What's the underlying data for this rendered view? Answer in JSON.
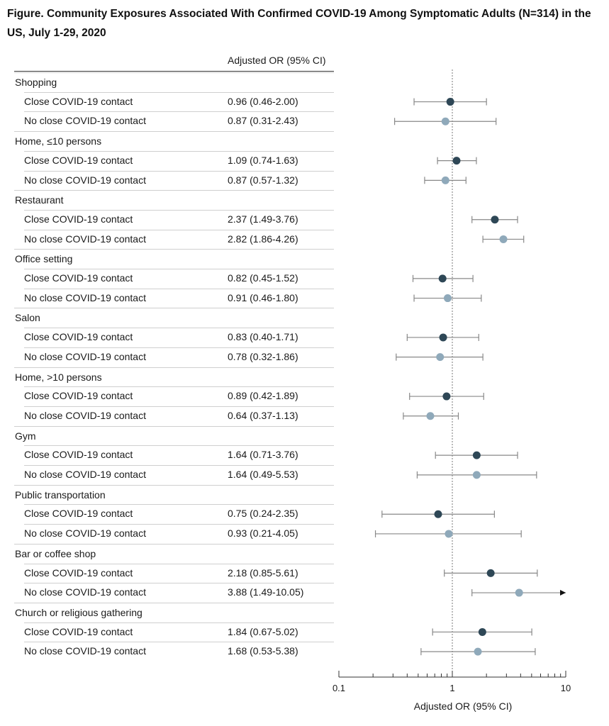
{
  "title": "Figure.  Community Exposures Associated With Confirmed COVID-19 Among Symptomatic Adults (N=314) in the US, July 1-29, 2020",
  "column_header": "Adjusted OR (95% CI)",
  "colors": {
    "close": "#2e4756",
    "no_close": "#8fa9ba",
    "whisker": "#888888",
    "reference": "#777777"
  },
  "chart_data": {
    "type": "forest",
    "xlabel": "Adjusted OR (95% CI)",
    "xscale": "log",
    "xlim": [
      0.1,
      10
    ],
    "xticks": [
      {
        "value": 0.1,
        "label": "0.1"
      },
      {
        "value": 1,
        "label": "1"
      },
      {
        "value": 10,
        "label": "10"
      }
    ],
    "reference_line": 1,
    "groups": [
      {
        "name": "Shopping",
        "rows": [
          {
            "label": "Close COVID-19 contact",
            "text": "0.96 (0.46-2.00)",
            "or": 0.96,
            "lo": 0.46,
            "hi": 2.0,
            "contact": "close"
          },
          {
            "label": "No close COVID-19 contact",
            "text": "0.87 (0.31-2.43)",
            "or": 0.87,
            "lo": 0.31,
            "hi": 2.43,
            "contact": "no_close"
          }
        ]
      },
      {
        "name": "Home, ≤10 persons",
        "rows": [
          {
            "label": "Close COVID-19 contact",
            "text": "1.09 (0.74-1.63)",
            "or": 1.09,
            "lo": 0.74,
            "hi": 1.63,
            "contact": "close"
          },
          {
            "label": "No close COVID-19 contact",
            "text": "0.87 (0.57-1.32)",
            "or": 0.87,
            "lo": 0.57,
            "hi": 1.32,
            "contact": "no_close"
          }
        ]
      },
      {
        "name": "Restaurant",
        "rows": [
          {
            "label": "Close COVID-19 contact",
            "text": "2.37 (1.49-3.76)",
            "or": 2.37,
            "lo": 1.49,
            "hi": 3.76,
            "contact": "close"
          },
          {
            "label": "No close COVID-19 contact",
            "text": "2.82 (1.86-4.26)",
            "or": 2.82,
            "lo": 1.86,
            "hi": 4.26,
            "contact": "no_close"
          }
        ]
      },
      {
        "name": "Office setting",
        "rows": [
          {
            "label": "Close COVID-19 contact",
            "text": "0.82 (0.45-1.52)",
            "or": 0.82,
            "lo": 0.45,
            "hi": 1.52,
            "contact": "close"
          },
          {
            "label": "No close COVID-19 contact",
            "text": "0.91 (0.46-1.80)",
            "or": 0.91,
            "lo": 0.46,
            "hi": 1.8,
            "contact": "no_close"
          }
        ]
      },
      {
        "name": "Salon",
        "rows": [
          {
            "label": "Close COVID-19 contact",
            "text": "0.83 (0.40-1.71)",
            "or": 0.83,
            "lo": 0.4,
            "hi": 1.71,
            "contact": "close"
          },
          {
            "label": "No close COVID-19 contact",
            "text": "0.78 (0.32-1.86)",
            "or": 0.78,
            "lo": 0.32,
            "hi": 1.86,
            "contact": "no_close"
          }
        ]
      },
      {
        "name": "Home, >10 persons",
        "rows": [
          {
            "label": "Close COVID-19 contact",
            "text": "0.89 (0.42-1.89)",
            "or": 0.89,
            "lo": 0.42,
            "hi": 1.89,
            "contact": "close"
          },
          {
            "label": "No close COVID-19 contact",
            "text": "0.64 (0.37-1.13)",
            "or": 0.64,
            "lo": 0.37,
            "hi": 1.13,
            "contact": "no_close"
          }
        ]
      },
      {
        "name": "Gym",
        "rows": [
          {
            "label": "Close COVID-19 contact",
            "text": "1.64 (0.71-3.76)",
            "or": 1.64,
            "lo": 0.71,
            "hi": 3.76,
            "contact": "close"
          },
          {
            "label": "No close COVID-19 contact",
            "text": "1.64 (0.49-5.53)",
            "or": 1.64,
            "lo": 0.49,
            "hi": 5.53,
            "contact": "no_close"
          }
        ]
      },
      {
        "name": "Public transportation",
        "rows": [
          {
            "label": "Close COVID-19 contact",
            "text": "0.75 (0.24-2.35)",
            "or": 0.75,
            "lo": 0.24,
            "hi": 2.35,
            "contact": "close"
          },
          {
            "label": "No close COVID-19 contact",
            "text": "0.93 (0.21-4.05)",
            "or": 0.93,
            "lo": 0.21,
            "hi": 4.05,
            "contact": "no_close"
          }
        ]
      },
      {
        "name": "Bar or coffee shop",
        "rows": [
          {
            "label": "Close COVID-19 contact",
            "text": "2.18 (0.85-5.61)",
            "or": 2.18,
            "lo": 0.85,
            "hi": 5.61,
            "contact": "close"
          },
          {
            "label": "No close COVID-19 contact",
            "text": "3.88 (1.49-10.05)",
            "or": 3.88,
            "lo": 1.49,
            "hi": 10.05,
            "contact": "no_close"
          }
        ]
      },
      {
        "name": "Church or religious gathering",
        "rows": [
          {
            "label": "Close COVID-19 contact",
            "text": "1.84 (0.67-5.02)",
            "or": 1.84,
            "lo": 0.67,
            "hi": 5.02,
            "contact": "close"
          },
          {
            "label": "No close COVID-19 contact",
            "text": "1.68 (0.53-5.38)",
            "or": 1.68,
            "lo": 0.53,
            "hi": 5.38,
            "contact": "no_close"
          }
        ]
      }
    ]
  }
}
